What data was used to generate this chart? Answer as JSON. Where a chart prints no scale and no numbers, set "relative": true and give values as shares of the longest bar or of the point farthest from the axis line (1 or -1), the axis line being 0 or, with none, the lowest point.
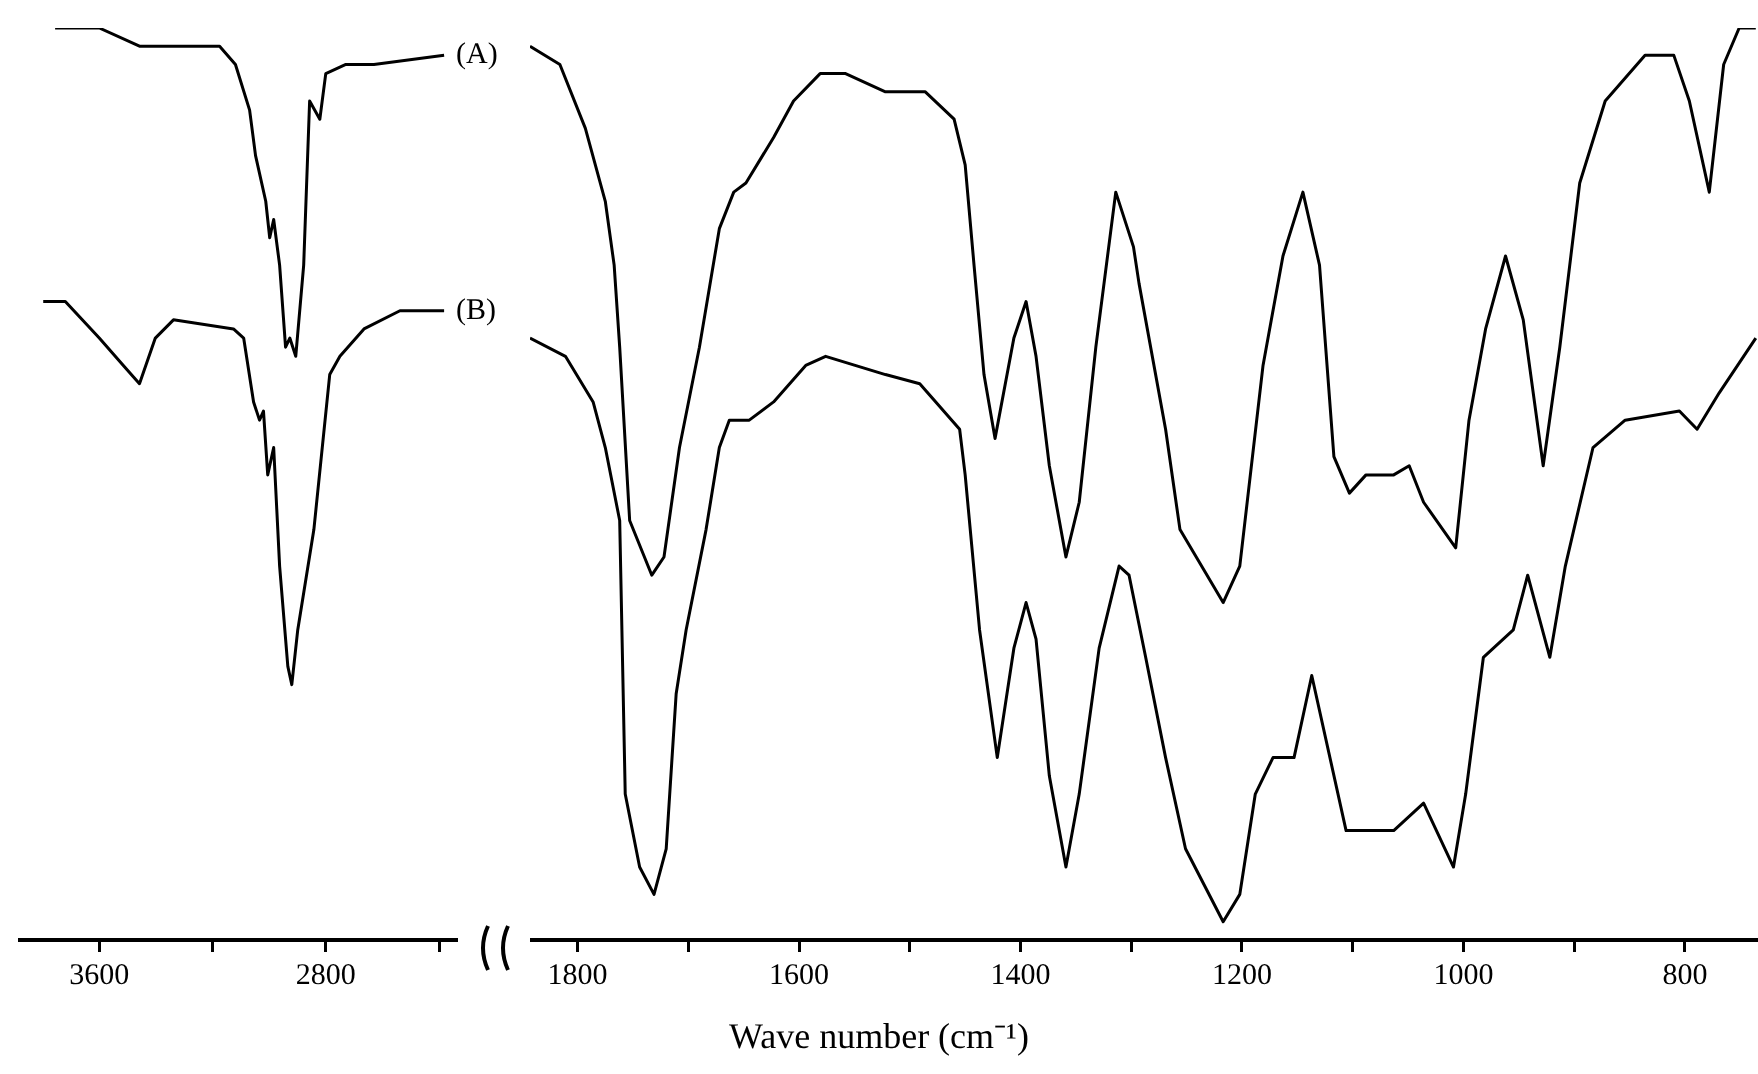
{
  "chart_data": [
    {
      "type": "line",
      "relative": true,
      "xlim": [
        3880,
        2340
      ],
      "xticks": [
        3600,
        {
          "value": 3200,
          "label": null
        },
        2800,
        {
          "value": 2400,
          "label": null
        }
      ],
      "grid": false,
      "legend": false,
      "marker": "none",
      "line_style": "solid",
      "series": [
        {
          "name": "(A)",
          "color": "#000000",
          "x": [
            3756,
            3600,
            3458,
            3175,
            3119,
            3069,
            3048,
            3012,
            2998,
            2984,
            2963,
            2942,
            2927,
            2906,
            2878,
            2857,
            2821,
            2800,
            2729,
            2630,
            2382
          ],
          "values": [
            1.0,
            1.0,
            0.98,
            0.98,
            0.96,
            0.91,
            0.86,
            0.81,
            0.77,
            0.79,
            0.74,
            0.65,
            0.66,
            0.64,
            0.74,
            0.92,
            0.9,
            0.95,
            0.96,
            0.96,
            0.97
          ]
        },
        {
          "name": "(B)",
          "color": "#000000",
          "x": [
            3798,
            3720,
            3600,
            3515,
            3458,
            3402,
            3338,
            3126,
            3090,
            3055,
            3034,
            3020,
            3005,
            2984,
            2963,
            2934,
            2920,
            2899,
            2842,
            2786,
            2750,
            2665,
            2538,
            2382
          ],
          "values": [
            0.7,
            0.7,
            0.66,
            0.63,
            0.61,
            0.66,
            0.68,
            0.67,
            0.66,
            0.59,
            0.57,
            0.58,
            0.51,
            0.54,
            0.41,
            0.3,
            0.28,
            0.34,
            0.45,
            0.62,
            0.64,
            0.67,
            0.69,
            0.69
          ]
        }
      ]
    },
    {
      "type": "line",
      "relative": true,
      "xlim": [
        1843,
        734
      ],
      "xticks": [
        1800,
        {
          "value": 1700,
          "label": null
        },
        1600,
        {
          "value": 1500,
          "label": null
        },
        1400,
        {
          "value": 1300,
          "label": null
        },
        1200,
        {
          "value": 1100,
          "label": null
        },
        1000,
        {
          "value": 900,
          "label": null
        },
        800
      ],
      "xlabel": "Wave number (cm⁻¹)",
      "grid": false,
      "legend": false,
      "marker": "none",
      "line_style": "solid",
      "series": [
        {
          "color": "#000000",
          "x": [
            1843,
            1816,
            1793,
            1775,
            1767,
            1762,
            1753,
            1733,
            1722,
            1708,
            1690,
            1672,
            1659,
            1648,
            1623,
            1605,
            1581,
            1558,
            1522,
            1486,
            1460,
            1450,
            1442,
            1433,
            1423,
            1406,
            1395,
            1386,
            1374,
            1359,
            1347,
            1332,
            1314,
            1298,
            1293,
            1269,
            1256,
            1217,
            1202,
            1181,
            1163,
            1145,
            1130,
            1117,
            1103,
            1088,
            1063,
            1049,
            1036,
            1007,
            995,
            980,
            962,
            946,
            928,
            913,
            895,
            872,
            836,
            810,
            796,
            778,
            765,
            751,
            736
          ],
          "values": [
            0.98,
            0.96,
            0.89,
            0.81,
            0.74,
            0.65,
            0.46,
            0.4,
            0.42,
            0.54,
            0.65,
            0.78,
            0.82,
            0.83,
            0.88,
            0.92,
            0.95,
            0.95,
            0.93,
            0.93,
            0.9,
            0.85,
            0.74,
            0.62,
            0.55,
            0.66,
            0.7,
            0.64,
            0.52,
            0.42,
            0.48,
            0.65,
            0.82,
            0.76,
            0.72,
            0.56,
            0.45,
            0.37,
            0.41,
            0.63,
            0.75,
            0.82,
            0.74,
            0.53,
            0.49,
            0.51,
            0.51,
            0.52,
            0.48,
            0.43,
            0.57,
            0.67,
            0.75,
            0.68,
            0.52,
            0.65,
            0.83,
            0.92,
            0.97,
            0.97,
            0.92,
            0.82,
            0.96,
            1.0,
            1.0
          ]
        },
        {
          "color": "#000000",
          "x": [
            1843,
            1811,
            1786,
            1775,
            1762,
            1757,
            1744,
            1731,
            1720,
            1711,
            1702,
            1684,
            1672,
            1663,
            1645,
            1623,
            1594,
            1576,
            1522,
            1491,
            1455,
            1450,
            1437,
            1421,
            1406,
            1395,
            1386,
            1374,
            1359,
            1347,
            1329,
            1311,
            1302,
            1287,
            1269,
            1251,
            1217,
            1202,
            1188,
            1172,
            1153,
            1137,
            1106,
            1088,
            1063,
            1036,
            1009,
            998,
            982,
            955,
            942,
            922,
            908,
            883,
            854,
            805,
            789,
            769,
            736
          ],
          "values": [
            0.66,
            0.64,
            0.59,
            0.54,
            0.46,
            0.16,
            0.08,
            0.05,
            0.1,
            0.27,
            0.34,
            0.45,
            0.54,
            0.57,
            0.57,
            0.59,
            0.63,
            0.64,
            0.62,
            0.61,
            0.56,
            0.51,
            0.34,
            0.2,
            0.32,
            0.37,
            0.33,
            0.18,
            0.08,
            0.16,
            0.32,
            0.41,
            0.4,
            0.31,
            0.2,
            0.1,
            0.02,
            0.05,
            0.16,
            0.2,
            0.2,
            0.29,
            0.12,
            0.12,
            0.12,
            0.15,
            0.08,
            0.16,
            0.31,
            0.34,
            0.4,
            0.31,
            0.41,
            0.54,
            0.57,
            0.58,
            0.56,
            0.6,
            0.66
          ]
        }
      ]
    }
  ]
}
